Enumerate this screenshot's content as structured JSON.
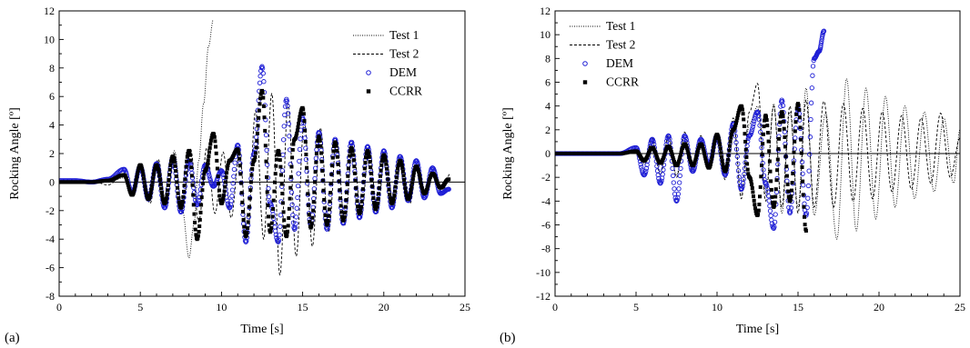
{
  "chart_data": [
    {
      "type": "line",
      "panel_label": "(a)",
      "xlabel": "Time [s]",
      "ylabel": "Rocking Angle [º]",
      "xlim": [
        0,
        25
      ],
      "ylim": [
        -8,
        12
      ],
      "x_major_ticks": [
        0,
        5,
        10,
        15,
        20,
        25
      ],
      "y_major_ticks": [
        -8,
        -6,
        -4,
        -2,
        0,
        2,
        4,
        6,
        8,
        10,
        12
      ],
      "grid": false,
      "legend": "top-right",
      "zero_line": true,
      "series": [
        {
          "name": "Test 1",
          "style": "dotted-line",
          "color": "#000000",
          "x": [
            0,
            1,
            2,
            3,
            4,
            4.6,
            5.1,
            5.6,
            6.1,
            6.6,
            7.1,
            7.6,
            8.0,
            8.3,
            8.6,
            8.9,
            9.2,
            9.5
          ],
          "y": [
            0,
            0,
            0.1,
            0,
            0.3,
            -0.8,
            1.0,
            -1.2,
            1.5,
            -1.8,
            2.2,
            -2.0,
            -5.3,
            -3.0,
            1.5,
            5.5,
            9.5,
            11.4
          ]
        },
        {
          "name": "Test 2",
          "style": "dashed-line",
          "color": "#000000",
          "x": [
            0,
            1,
            2,
            3,
            4,
            4.6,
            5.1,
            5.6,
            6.1,
            6.6,
            7.1,
            7.6,
            8.1,
            8.6,
            9.1,
            9.6,
            10.1,
            10.6,
            11.1,
            11.6,
            12.1,
            12.6,
            13.1,
            13.6,
            14.1,
            14.6,
            15.1,
            15.6,
            16.1,
            16.6,
            17.1,
            17.6,
            18.1,
            18.6,
            19.1,
            19.6,
            20.1,
            20.6,
            21.1,
            21.6,
            22.1,
            22.6,
            23.1,
            23.6,
            24.1
          ],
          "y": [
            0,
            0,
            0.1,
            -0.2,
            0.5,
            -0.9,
            1.2,
            -1.5,
            1.6,
            -1.7,
            2.0,
            -2.2,
            2.3,
            -2.8,
            2.4,
            -2.2,
            2.1,
            -2.5,
            2.0,
            -3.8,
            5.0,
            -4.0,
            6.2,
            -6.5,
            5.5,
            -5.2,
            4.3,
            -4.5,
            3.8,
            -3.5,
            3.0,
            -3.0,
            2.9,
            -2.5,
            2.5,
            -2.2,
            2.2,
            -1.8,
            1.8,
            -1.5,
            1.3,
            -1.0,
            0.9,
            -0.7,
            0.6
          ]
        },
        {
          "name": "DEM",
          "style": "open-circle-markers",
          "color": "#1f1fd6",
          "x": [
            0,
            1,
            2,
            3,
            4,
            4.5,
            5.0,
            5.5,
            6.0,
            6.5,
            7.0,
            7.5,
            8.0,
            8.5,
            9.0,
            9.5,
            10.0,
            10.5,
            11.0,
            11.5,
            12.0,
            12.5,
            13.0,
            13.5,
            14.0,
            14.5,
            15.0,
            15.5,
            16.0,
            16.5,
            17.0,
            17.5,
            18.0,
            18.5,
            19.0,
            19.5,
            20.0,
            20.5,
            21.0,
            21.5,
            22.0,
            22.5,
            23.0,
            23.5,
            24.0
          ],
          "y": [
            0.1,
            0.1,
            0,
            0.2,
            0.9,
            -0.8,
            1.1,
            -1.2,
            1.3,
            -1.8,
            1.7,
            -2.1,
            1.5,
            -1.6,
            1.2,
            -0.3,
            0.8,
            -1.8,
            2.6,
            -4.2,
            2.0,
            8.1,
            -1.5,
            -4.2,
            5.8,
            -3.3,
            4.5,
            -3.0,
            3.5,
            -3.3,
            3.0,
            -2.9,
            2.8,
            -2.5,
            2.5,
            -2.1,
            2.2,
            -1.8,
            1.8,
            -1.3,
            1.5,
            -1.1,
            1.0,
            -0.8,
            -0.5
          ]
        },
        {
          "name": "CCRR",
          "style": "filled-square-markers",
          "color": "#000000",
          "x": [
            0,
            1,
            2,
            3,
            4,
            4.5,
            5.0,
            5.5,
            6.0,
            6.5,
            7.0,
            7.5,
            8.0,
            8.5,
            9.0,
            9.5,
            10.0,
            10.5,
            11.0,
            11.5,
            12.0,
            12.5,
            13.0,
            13.5,
            14.0,
            14.5,
            15.0,
            15.5,
            16.0,
            16.5,
            17.0,
            17.5,
            18.0,
            18.5,
            19.0,
            19.5,
            20.0,
            20.5,
            21.0,
            21.5,
            22.0,
            22.5,
            23.0,
            23.5,
            24.0
          ],
          "y": [
            0,
            0,
            0,
            0.1,
            0.5,
            -0.9,
            1.2,
            -1.2,
            1.2,
            -1.5,
            1.8,
            -1.8,
            2.2,
            -4.0,
            0.8,
            3.4,
            -1.5,
            1.5,
            2.3,
            -3.8,
            1.5,
            6.4,
            -3.5,
            2.2,
            -3.8,
            3.0,
            5.2,
            -3.2,
            3.2,
            -3.0,
            2.8,
            -2.7,
            2.4,
            -2.2,
            2.2,
            -1.9,
            1.9,
            -1.5,
            1.5,
            -1.2,
            1.1,
            -0.8,
            0.6,
            -0.4,
            0.2
          ]
        }
      ]
    },
    {
      "type": "line",
      "panel_label": "(b)",
      "xlabel": "Time [s]",
      "ylabel": "Rocking Angle [º]",
      "xlim": [
        0,
        25
      ],
      "ylim": [
        -12,
        12
      ],
      "x_major_ticks": [
        0,
        5,
        10,
        15,
        20,
        25
      ],
      "y_major_ticks": [
        -12,
        -10,
        -8,
        -6,
        -4,
        -2,
        0,
        2,
        4,
        6,
        8,
        10,
        12
      ],
      "grid": false,
      "legend": "top-left",
      "zero_line": true,
      "series": [
        {
          "name": "Test 1",
          "style": "dotted-line",
          "color": "#000000",
          "x": [
            0,
            1,
            2,
            3,
            4,
            5,
            5.5,
            6.0,
            6.5,
            7.0,
            7.5,
            8.0,
            8.5,
            9.0,
            9.5,
            10.0,
            10.5,
            11.0,
            11.5,
            12.0,
            12.5,
            13.0,
            13.5,
            14.0,
            14.5,
            15.0,
            15.5,
            16.0,
            16.7,
            17.4,
            18.0,
            18.6,
            19.2,
            19.8,
            20.4,
            21.0,
            21.6,
            22.2,
            22.8,
            23.4,
            24.0,
            24.6,
            25.0
          ],
          "y": [
            0,
            0,
            0,
            0,
            0,
            0.2,
            -0.8,
            1.0,
            -1.5,
            1.2,
            -1.8,
            1.5,
            -1.5,
            1.2,
            -1.0,
            1.4,
            -2.0,
            2.8,
            -3.5,
            2.5,
            4.0,
            -3.5,
            4.2,
            -5.0,
            3.5,
            -4.5,
            5.5,
            -5.2,
            3.4,
            -7.2,
            6.3,
            -6.5,
            5.5,
            -5.5,
            4.8,
            -4.5,
            4.0,
            -3.8,
            3.5,
            -3.2,
            3.0,
            -2.5,
            2.0
          ]
        },
        {
          "name": "Test 2",
          "style": "dashed-line",
          "color": "#000000",
          "x": [
            0,
            1,
            2,
            3,
            4,
            5,
            5.5,
            6.0,
            6.5,
            7.0,
            7.5,
            8.0,
            8.5,
            9.0,
            9.5,
            10.0,
            10.5,
            11.0,
            11.5,
            12.0,
            12.5,
            13.0,
            13.5,
            14.0,
            14.5,
            15.0,
            15.5,
            16.0,
            16.6,
            17.2,
            17.8,
            18.4,
            19.0,
            19.6,
            20.2,
            20.8,
            21.4,
            22.0,
            22.6,
            23.2,
            23.8,
            24.4,
            25.0
          ],
          "y": [
            0,
            0,
            0,
            0,
            0,
            0.3,
            -1.0,
            1.3,
            -1.8,
            1.5,
            -2.0,
            1.8,
            -1.5,
            1.5,
            -1.2,
            1.8,
            -2.2,
            3.0,
            -3.8,
            3.5,
            5.9,
            -4.0,
            4.0,
            -4.5,
            4.0,
            -5.0,
            4.5,
            -4.5,
            4.4,
            -4.5,
            4.2,
            -4.0,
            3.8,
            -3.8,
            3.5,
            -3.2,
            3.2,
            -3.0,
            3.0,
            -2.5,
            3.4,
            -2.0,
            1.3
          ]
        },
        {
          "name": "DEM",
          "style": "open-circle-markers",
          "color": "#1f1fd6",
          "x": [
            0,
            1,
            2,
            3,
            4,
            5,
            5.5,
            6.0,
            6.5,
            7.0,
            7.5,
            8.0,
            8.5,
            9.0,
            9.5,
            10.0,
            10.5,
            11.0,
            11.5,
            12.0,
            12.5,
            13.0,
            13.5,
            14.0,
            14.5,
            15.0,
            15.5,
            16.0,
            16.3,
            16.6
          ],
          "y": [
            0,
            0,
            0,
            0,
            0,
            0.5,
            -1.8,
            1.2,
            -2.5,
            1.5,
            -4.0,
            1.5,
            -1.5,
            1.2,
            -1.0,
            1.5,
            -1.8,
            2.5,
            -3.0,
            1.5,
            3.5,
            -2.5,
            -6.3,
            4.5,
            -5.0,
            3.8,
            -5.2,
            8.0,
            8.6,
            10.3
          ]
        },
        {
          "name": "CCRR",
          "style": "filled-square-markers",
          "color": "#000000",
          "x": [
            0,
            1,
            2,
            3,
            4,
            5,
            5.5,
            6.0,
            6.5,
            7.0,
            7.5,
            8.0,
            8.5,
            9.0,
            9.5,
            10.0,
            10.5,
            11.0,
            11.5,
            12.0,
            12.5,
            13.0,
            13.5,
            14.0,
            14.5,
            15.0,
            15.5
          ],
          "y": [
            0,
            0,
            0,
            0,
            0,
            0.2,
            -0.6,
            0.5,
            -0.8,
            0.6,
            -1.0,
            0.8,
            -1.0,
            0.8,
            -1.2,
            1.6,
            -1.5,
            2.0,
            4.0,
            -2.0,
            -5.2,
            3.2,
            -4.5,
            3.5,
            -4.0,
            4.2,
            -6.5
          ]
        }
      ]
    }
  ]
}
